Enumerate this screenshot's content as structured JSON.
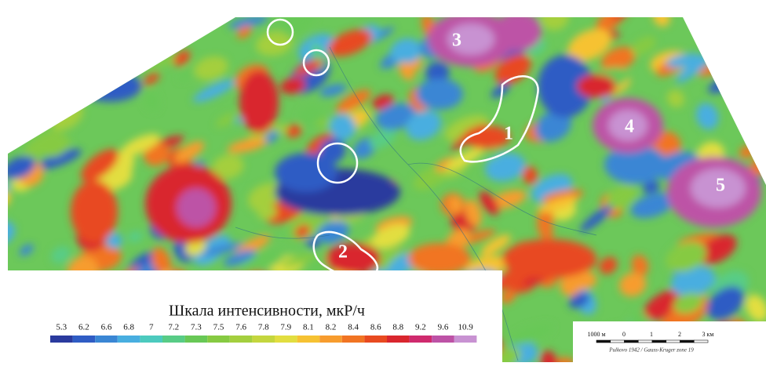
{
  "map": {
    "zones": [
      "1",
      "2",
      "3",
      "4",
      "5"
    ],
    "legend": {
      "title": "Шкала интенсивности, мкР/ч",
      "ticks": [
        5.3,
        6.2,
        6.6,
        6.8,
        7.0,
        7.2,
        7.3,
        7.5,
        7.6,
        7.8,
        7.9,
        8.1,
        8.2,
        8.4,
        8.6,
        8.8,
        9.2,
        9.6,
        10.9
      ],
      "colors": [
        "#2a3a9e",
        "#2f5cc4",
        "#3a86d4",
        "#48aee0",
        "#4ccabe",
        "#58cc86",
        "#68c856",
        "#86ca42",
        "#a4cf3e",
        "#c4d63e",
        "#e2de40",
        "#f6c233",
        "#f79c2e",
        "#f17423",
        "#e84a20",
        "#d9262e",
        "#cf2a6e",
        "#bd52a6",
        "#c892d2"
      ]
    },
    "scale_bar": {
      "labels": [
        "1000 м",
        "0",
        "1",
        "2",
        "3 км"
      ],
      "credit": "Pulkovo 1942 / Gauss-Kruger zone 19"
    }
  }
}
